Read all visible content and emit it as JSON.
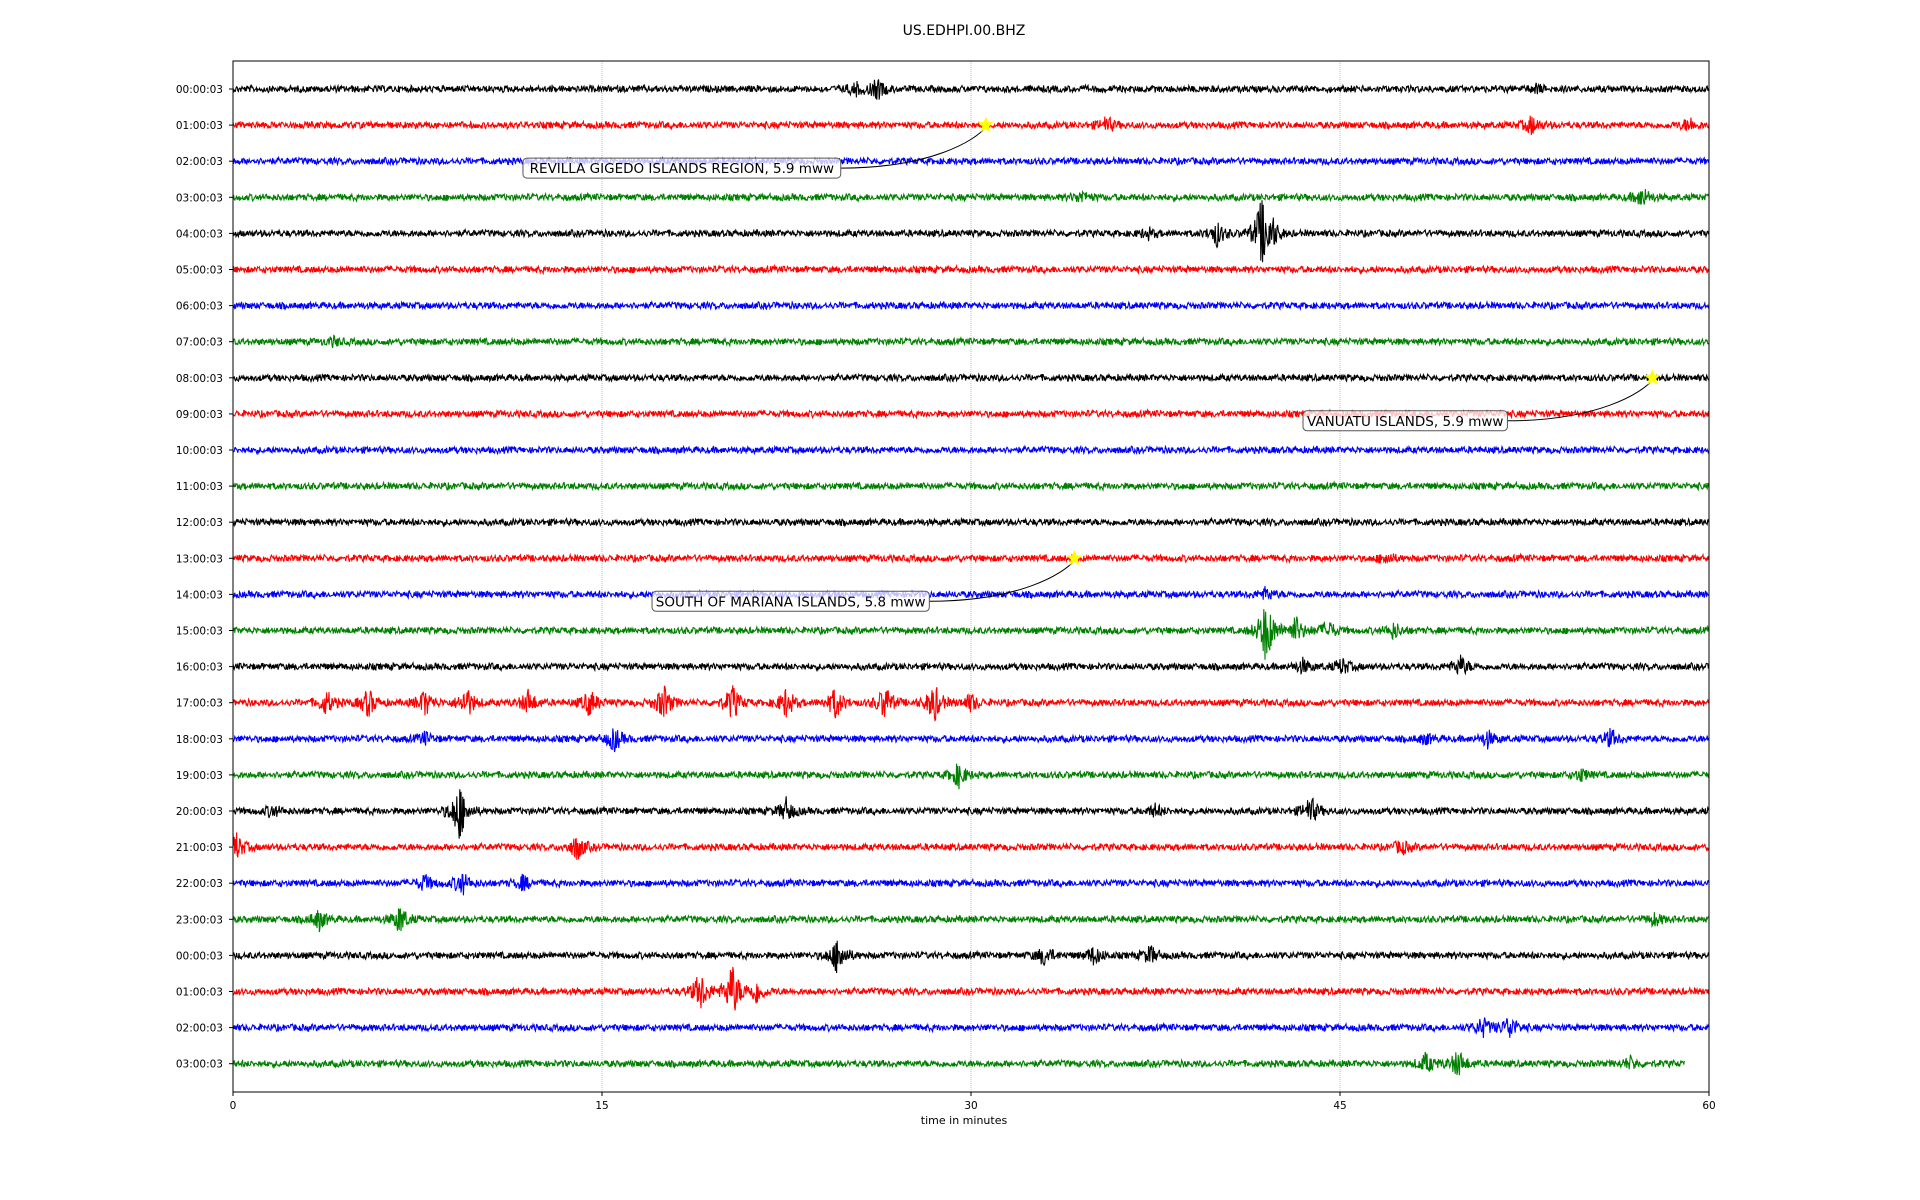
{
  "chart_data": {
    "type": "line",
    "title": "US.EDHPI.00.BHZ",
    "xlabel": "time in minutes",
    "ylabel": "",
    "xlim": [
      0,
      60
    ],
    "x_ticks": [
      "0",
      "15",
      "30",
      "45",
      "60"
    ],
    "grid": "vertical lines at 15-minute intervals",
    "row_colors": [
      "#000000",
      "#ff0000",
      "#0000ff",
      "#008000"
    ],
    "rows": [
      {
        "label": "00:00:03",
        "events": [
          {
            "t": 26.2,
            "amp": 10
          },
          {
            "t": 25.3,
            "amp": 6
          },
          {
            "t": 53.0,
            "amp": 4
          }
        ]
      },
      {
        "label": "01:00:03",
        "events": [
          {
            "t": 35.5,
            "amp": 8
          },
          {
            "t": 52.8,
            "amp": 9
          },
          {
            "t": 59.2,
            "amp": 7
          }
        ]
      },
      {
        "label": "02:00:03",
        "events": []
      },
      {
        "label": "03:00:03",
        "events": [
          {
            "t": 34.5,
            "amp": 6
          },
          {
            "t": 57.3,
            "amp": 10
          }
        ]
      },
      {
        "label": "04:00:03",
        "events": [
          {
            "t": 40.0,
            "amp": 12
          },
          {
            "t": 41.8,
            "amp": 32
          },
          {
            "t": 42.2,
            "amp": 14
          },
          {
            "t": 37.2,
            "amp": 5
          }
        ]
      },
      {
        "label": "05:00:03",
        "events": []
      },
      {
        "label": "06:00:03",
        "events": []
      },
      {
        "label": "07:00:03",
        "events": [
          {
            "t": 4.1,
            "amp": 4
          }
        ]
      },
      {
        "label": "08:00:03",
        "events": []
      },
      {
        "label": "09:00:03",
        "events": []
      },
      {
        "label": "10:00:03",
        "events": []
      },
      {
        "label": "11:00:03",
        "events": []
      },
      {
        "label": "12:00:03",
        "events": []
      },
      {
        "label": "13:00:03",
        "events": [
          {
            "t": 46.9,
            "amp": 6
          }
        ]
      },
      {
        "label": "14:00:03",
        "events": [
          {
            "t": 42.0,
            "amp": 6
          }
        ]
      },
      {
        "label": "15:00:03",
        "events": [
          {
            "t": 42.0,
            "amp": 34
          },
          {
            "t": 43.2,
            "amp": 14
          },
          {
            "t": 44.5,
            "amp": 10
          },
          {
            "t": 47.2,
            "amp": 8
          }
        ]
      },
      {
        "label": "16:00:03",
        "events": [
          {
            "t": 43.5,
            "amp": 7
          },
          {
            "t": 45.1,
            "amp": 8
          },
          {
            "t": 49.9,
            "amp": 10
          }
        ]
      },
      {
        "label": "17:00:03",
        "events": [
          {
            "t": 3.8,
            "amp": 12
          },
          {
            "t": 5.5,
            "amp": 14
          },
          {
            "t": 7.8,
            "amp": 13
          },
          {
            "t": 9.5,
            "amp": 16
          },
          {
            "t": 12.0,
            "amp": 12
          },
          {
            "t": 14.5,
            "amp": 13
          },
          {
            "t": 17.5,
            "amp": 18
          },
          {
            "t": 20.3,
            "amp": 18
          },
          {
            "t": 22.5,
            "amp": 15
          },
          {
            "t": 24.5,
            "amp": 16
          },
          {
            "t": 26.5,
            "amp": 18
          },
          {
            "t": 28.5,
            "amp": 20
          },
          {
            "t": 30.0,
            "amp": 9
          }
        ]
      },
      {
        "label": "18:00:03",
        "events": [
          {
            "t": 7.8,
            "amp": 6
          },
          {
            "t": 15.5,
            "amp": 12
          },
          {
            "t": 48.5,
            "amp": 5
          },
          {
            "t": 51.0,
            "amp": 8
          },
          {
            "t": 56.0,
            "amp": 9
          }
        ]
      },
      {
        "label": "19:00:03",
        "events": [
          {
            "t": 29.5,
            "amp": 12
          },
          {
            "t": 54.8,
            "amp": 6
          }
        ]
      },
      {
        "label": "20:00:03",
        "events": [
          {
            "t": 9.2,
            "amp": 30
          },
          {
            "t": 22.5,
            "amp": 12
          },
          {
            "t": 1.6,
            "amp": 6
          },
          {
            "t": 37.5,
            "amp": 6
          },
          {
            "t": 43.8,
            "amp": 14
          }
        ]
      },
      {
        "label": "21:00:03",
        "events": [
          {
            "t": 0.1,
            "amp": 16
          },
          {
            "t": 14.0,
            "amp": 13
          },
          {
            "t": 47.5,
            "amp": 7
          }
        ]
      },
      {
        "label": "22:00:03",
        "events": [
          {
            "t": 7.8,
            "amp": 8
          },
          {
            "t": 9.3,
            "amp": 12
          },
          {
            "t": 11.8,
            "amp": 7
          }
        ]
      },
      {
        "label": "23:00:03",
        "events": [
          {
            "t": 3.5,
            "amp": 10
          },
          {
            "t": 6.8,
            "amp": 14
          },
          {
            "t": 57.8,
            "amp": 6
          }
        ]
      },
      {
        "label": "00:00:03",
        "events": [
          {
            "t": 24.6,
            "amp": 20
          },
          {
            "t": 33.0,
            "amp": 10
          },
          {
            "t": 35.0,
            "amp": 9
          },
          {
            "t": 37.3,
            "amp": 9
          }
        ]
      },
      {
        "label": "01:00:03",
        "events": [
          {
            "t": 19.0,
            "amp": 20
          },
          {
            "t": 20.3,
            "amp": 28
          },
          {
            "t": 21.3,
            "amp": 12
          }
        ]
      },
      {
        "label": "02:00:03",
        "events": [
          {
            "t": 50.8,
            "amp": 10
          },
          {
            "t": 51.9,
            "amp": 12
          }
        ]
      },
      {
        "label": "03:00:03",
        "events": [
          {
            "t": 48.5,
            "amp": 10
          },
          {
            "t": 49.8,
            "amp": 14
          },
          {
            "t": 56.8,
            "amp": 6
          }
        ]
      }
    ],
    "trace_end_last_row": 59.0,
    "annotations": [
      {
        "text": "REVILLA GIGEDO ISLANDS REGION, 5.9 mww",
        "row": 1,
        "t": 30.6
      },
      {
        "text": "VANUATU ISLANDS, 5.9 mww",
        "row": 8,
        "t": 57.7
      },
      {
        "text": "SOUTH OF MARIANA ISLANDS, 5.8 mww",
        "row": 13,
        "t": 34.2
      }
    ]
  }
}
